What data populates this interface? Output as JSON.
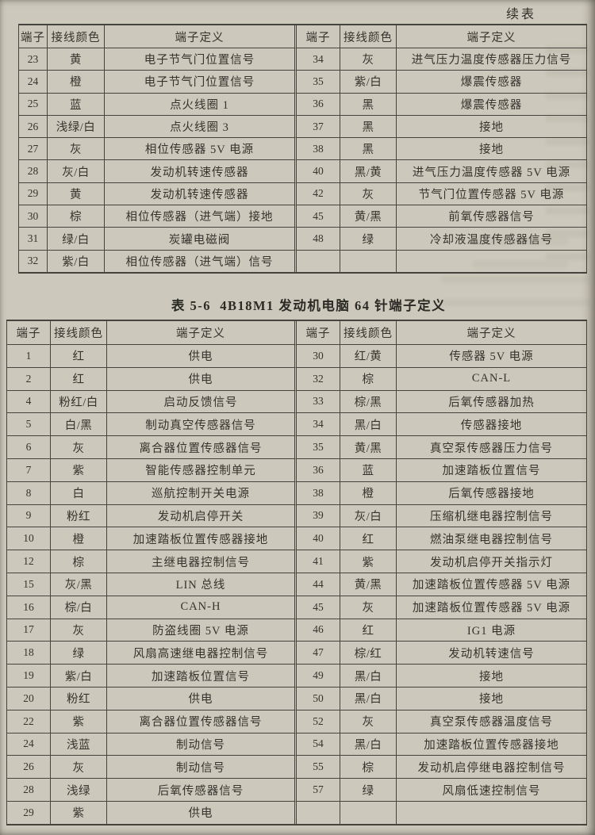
{
  "page": {
    "continued_label": "续表"
  },
  "table_top": {
    "headers": [
      "端子",
      "接线颜色",
      "端子定义"
    ],
    "left_rows": [
      [
        "23",
        "黄",
        "电子节气门位置信号"
      ],
      [
        "24",
        "橙",
        "电子节气门位置信号"
      ],
      [
        "25",
        "蓝",
        "点火线圈 1"
      ],
      [
        "26",
        "浅绿/白",
        "点火线圈 3"
      ],
      [
        "27",
        "灰",
        "相位传感器 5V 电源"
      ],
      [
        "28",
        "灰/白",
        "发动机转速传感器"
      ],
      [
        "29",
        "黄",
        "发动机转速传感器"
      ],
      [
        "30",
        "棕",
        "相位传感器（进气端）接地"
      ],
      [
        "31",
        "绿/白",
        "炭罐电磁阀"
      ],
      [
        "32",
        "紫/白",
        "相位传感器（进气端）信号"
      ]
    ],
    "right_rows": [
      [
        "34",
        "灰",
        "进气压力温度传感器压力信号"
      ],
      [
        "35",
        "紫/白",
        "爆震传感器"
      ],
      [
        "36",
        "黑",
        "爆震传感器"
      ],
      [
        "37",
        "黑",
        "接地"
      ],
      [
        "38",
        "黑",
        "接地"
      ],
      [
        "40",
        "黑/黄",
        "进气压力温度传感器 5V 电源"
      ],
      [
        "42",
        "灰",
        "节气门位置传感器 5V 电源"
      ],
      [
        "45",
        "黄/黑",
        "前氧传感器信号"
      ],
      [
        "48",
        "绿",
        "冷却液温度传感器信号"
      ],
      [
        "",
        "",
        ""
      ]
    ]
  },
  "table_main": {
    "title": "表 5-6  4B18M1 发动机电脑 64 针端子定义",
    "headers": [
      "端子",
      "接线颜色",
      "端子定义"
    ],
    "left_rows": [
      [
        "1",
        "红",
        "供电"
      ],
      [
        "2",
        "红",
        "供电"
      ],
      [
        "4",
        "粉红/白",
        "启动反馈信号"
      ],
      [
        "5",
        "白/黑",
        "制动真空传感器信号"
      ],
      [
        "6",
        "灰",
        "离合器位置传感器信号"
      ],
      [
        "7",
        "紫",
        "智能传感器控制单元"
      ],
      [
        "8",
        "白",
        "巡航控制开关电源"
      ],
      [
        "9",
        "粉红",
        "发动机启停开关"
      ],
      [
        "10",
        "橙",
        "加速踏板位置传感器接地"
      ],
      [
        "12",
        "棕",
        "主继电器控制信号"
      ],
      [
        "15",
        "灰/黑",
        "LIN 总线"
      ],
      [
        "16",
        "棕/白",
        "CAN-H"
      ],
      [
        "17",
        "灰",
        "防盗线圈 5V 电源"
      ],
      [
        "18",
        "绿",
        "风扇高速继电器控制信号"
      ],
      [
        "19",
        "紫/白",
        "加速踏板位置信号"
      ],
      [
        "20",
        "粉红",
        "供电"
      ],
      [
        "22",
        "紫",
        "离合器位置传感器信号"
      ],
      [
        "24",
        "浅蓝",
        "制动信号"
      ],
      [
        "26",
        "灰",
        "制动信号"
      ],
      [
        "28",
        "浅绿",
        "后氧传感器信号"
      ],
      [
        "29",
        "紫",
        "供电"
      ]
    ],
    "right_rows": [
      [
        "30",
        "红/黄",
        "传感器 5V 电源"
      ],
      [
        "32",
        "棕",
        "CAN-L"
      ],
      [
        "33",
        "棕/黑",
        "后氧传感器加热"
      ],
      [
        "34",
        "黑/白",
        "传感器接地"
      ],
      [
        "35",
        "黄/黑",
        "真空泵传感器压力信号"
      ],
      [
        "36",
        "蓝",
        "加速踏板位置信号"
      ],
      [
        "38",
        "橙",
        "后氧传感器接地"
      ],
      [
        "39",
        "灰/白",
        "压缩机继电器控制信号"
      ],
      [
        "40",
        "红",
        "燃油泵继电器控制信号"
      ],
      [
        "41",
        "紫",
        "发动机启停开关指示灯"
      ],
      [
        "44",
        "黄/黑",
        "加速踏板位置传感器 5V 电源"
      ],
      [
        "45",
        "灰",
        "加速踏板位置传感器 5V 电源"
      ],
      [
        "46",
        "红",
        "IG1 电源"
      ],
      [
        "47",
        "棕/红",
        "发动机转速信号"
      ],
      [
        "49",
        "黑/白",
        "接地"
      ],
      [
        "50",
        "黑/白",
        "接地"
      ],
      [
        "52",
        "灰",
        "真空泵传感器温度信号"
      ],
      [
        "54",
        "黑/白",
        "加速踏板位置传感器接地"
      ],
      [
        "55",
        "棕",
        "发动机启停继电器控制信号"
      ],
      [
        "57",
        "绿",
        "风扇低速控制信号"
      ],
      [
        "",
        "",
        ""
      ]
    ]
  }
}
